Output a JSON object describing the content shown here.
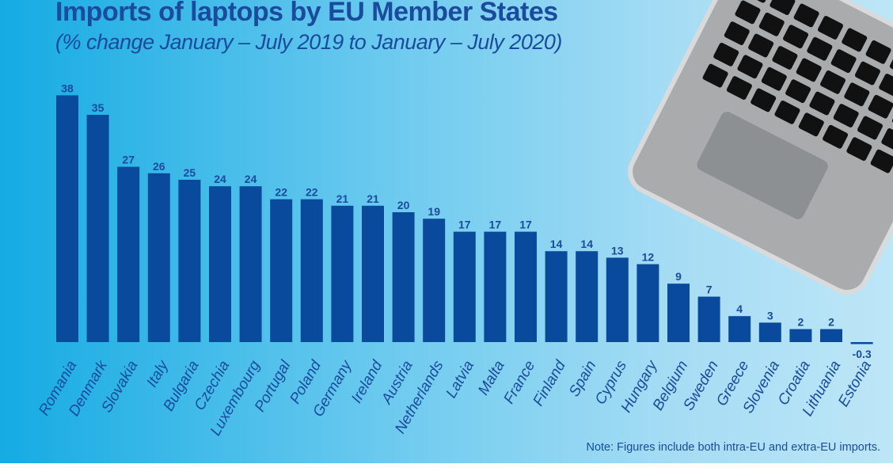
{
  "title": "Imports of laptops by EU Member States",
  "subtitle": "(% change January – July 2019 to January – July 2020)",
  "note": "Note: Figures include both intra-EU and extra-EU imports.",
  "colors": {
    "bar": "#0a4a9c",
    "text": "#1a4b9c",
    "background_left": "#15abe3",
    "background_right": "#bde6f7"
  },
  "illustration": "laptop-icon",
  "chart_data": {
    "type": "bar",
    "title": "Imports of laptops by EU Member States",
    "subtitle": "(% change January – July 2019 to January – July 2020)",
    "categories": [
      "Romania",
      "Denmark",
      "Slovakia",
      "Italy",
      "Bulgaria",
      "Czechia",
      "Luxembourg",
      "Portugal",
      "Poland",
      "Germany",
      "Ireland",
      "Austria",
      "Netherlands",
      "Latvia",
      "Malta",
      "France",
      "Finland",
      "Spain",
      "Cyprus",
      "Hungary",
      "Belgium",
      "Sweden",
      "Greece",
      "Slovenia",
      "Croatia",
      "Lithuania",
      "Estonia"
    ],
    "values": [
      38,
      35,
      27,
      26,
      25,
      24,
      24,
      22,
      22,
      21,
      21,
      20,
      19,
      17,
      17,
      17,
      14,
      14,
      13,
      12,
      9,
      7,
      4,
      3,
      2,
      2,
      -0.3
    ],
    "value_labels": [
      "38",
      "35",
      "27",
      "26",
      "25",
      "24",
      "24",
      "22",
      "22",
      "21",
      "21",
      "20",
      "19",
      "17",
      "17",
      "17",
      "14",
      "14",
      "13",
      "12",
      "9",
      "7",
      "4",
      "3",
      "2",
      "2",
      "-0.3"
    ],
    "xlabel": "",
    "ylabel": "",
    "ylim": [
      -0.3,
      38
    ],
    "grid": false,
    "legend": "none",
    "data_labels": true
  }
}
